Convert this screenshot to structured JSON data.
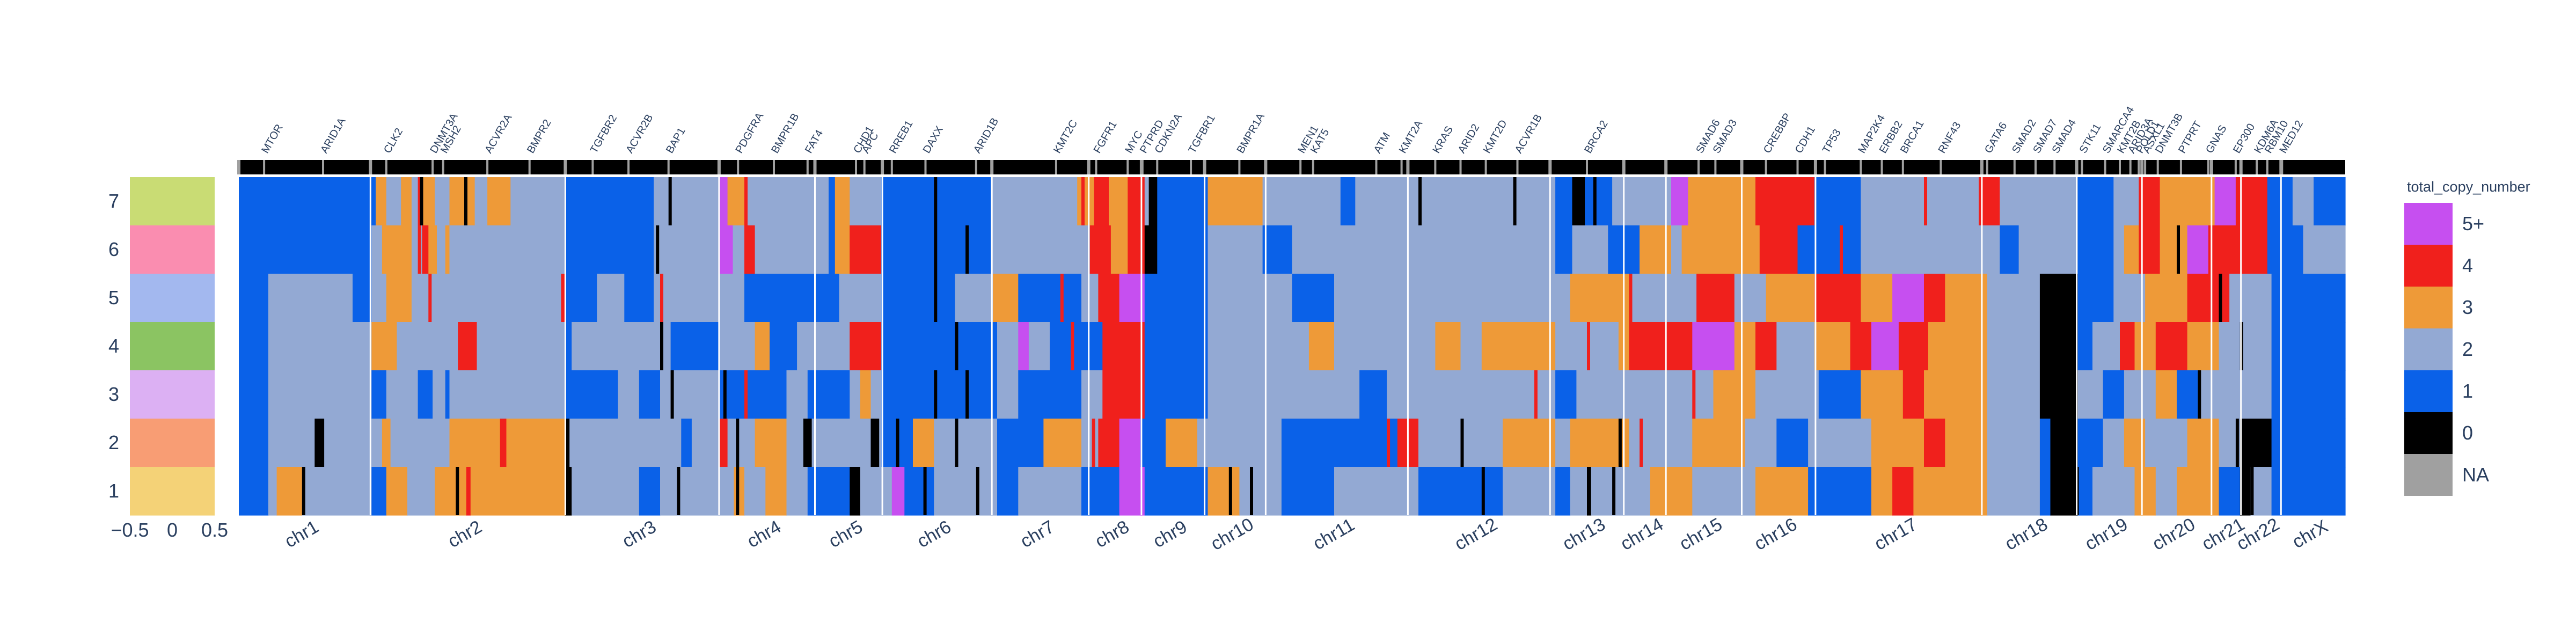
{
  "chart_data": {
    "type": "heatmap",
    "title": "",
    "legend": {
      "title": "total_copy_number",
      "placement": "right",
      "entries": [
        {
          "label": "5+",
          "color": "#c64ff0"
        },
        {
          "label": "4",
          "color": "#f0201c"
        },
        {
          "label": "3",
          "color": "#ee9a38"
        },
        {
          "label": "2",
          "color": "#93a9d3"
        },
        {
          "label": "1",
          "color": "#0a61e8"
        },
        {
          "label": "0",
          "color": "#000000"
        },
        {
          "label": "NA",
          "color": "#a0a0a0"
        }
      ]
    },
    "clusters": {
      "y_ticks": [
        "7",
        "6",
        "5",
        "4",
        "3",
        "2",
        "1"
      ],
      "x_ticks": [
        "−0.5",
        "0",
        "0.5"
      ],
      "colors": [
        "#c9dc74",
        "#fa8db0",
        "#a3b8ef",
        "#8bc462",
        "#dcb0f3",
        "#f89d74",
        "#f4d277"
      ]
    },
    "chromosomes": [
      {
        "name": "chr1",
        "start": 0.0,
        "end": 0.0625
      },
      {
        "name": "chr2",
        "start": 0.0625,
        "end": 0.155
      },
      {
        "name": "chr3",
        "start": 0.155,
        "end": 0.228
      },
      {
        "name": "chr4",
        "start": 0.228,
        "end": 0.2735
      },
      {
        "name": "chr5",
        "start": 0.2735,
        "end": 0.3055
      },
      {
        "name": "chr6",
        "start": 0.3055,
        "end": 0.3575
      },
      {
        "name": "chr7",
        "start": 0.3575,
        "end": 0.4035
      },
      {
        "name": "chr8",
        "start": 0.4035,
        "end": 0.4285
      },
      {
        "name": "chr9",
        "start": 0.4285,
        "end": 0.4585
      },
      {
        "name": "chr10",
        "start": 0.4585,
        "end": 0.4875
      },
      {
        "name": "chr11",
        "start": 0.4875,
        "end": 0.555
      },
      {
        "name": "chr12",
        "start": 0.555,
        "end": 0.6225
      },
      {
        "name": "chr13",
        "start": 0.6225,
        "end": 0.6575
      },
      {
        "name": "chr14",
        "start": 0.6575,
        "end": 0.6775
      },
      {
        "name": "chr15",
        "start": 0.6775,
        "end": 0.7135
      },
      {
        "name": "chr16",
        "start": 0.7135,
        "end": 0.7485
      },
      {
        "name": "chr17",
        "start": 0.7485,
        "end": 0.8275
      },
      {
        "name": "chr18",
        "start": 0.8275,
        "end": 0.8725
      },
      {
        "name": "chr19",
        "start": 0.8725,
        "end": 0.9035
      },
      {
        "name": "chr20",
        "start": 0.9035,
        "end": 0.9365
      },
      {
        "name": "chr21",
        "start": 0.9365,
        "end": 0.9505
      },
      {
        "name": "chr22",
        "start": 0.9505,
        "end": 0.9695
      },
      {
        "name": "chrX",
        "start": 0.9695,
        "end": 1.0
      }
    ],
    "genes": [
      {
        "name": "MTOR",
        "pos": 0.012
      },
      {
        "name": "ARID1A",
        "pos": 0.04
      },
      {
        "name": "CLK2",
        "pos": 0.07
      },
      {
        "name": "DNMT3A",
        "pos": 0.092
      },
      {
        "name": "MSH2",
        "pos": 0.097
      },
      {
        "name": "ACVR2A",
        "pos": 0.118
      },
      {
        "name": "BMPR2",
        "pos": 0.138
      },
      {
        "name": "TGFBR2",
        "pos": 0.168
      },
      {
        "name": "ACVR2B",
        "pos": 0.185
      },
      {
        "name": "BAP1",
        "pos": 0.204
      },
      {
        "name": "PDGFRA",
        "pos": 0.237
      },
      {
        "name": "BMPR1B",
        "pos": 0.254
      },
      {
        "name": "FAT4",
        "pos": 0.27
      },
      {
        "name": "CHD1",
        "pos": 0.293
      },
      {
        "name": "APC",
        "pos": 0.297
      },
      {
        "name": "RREB1",
        "pos": 0.31
      },
      {
        "name": "DAXX",
        "pos": 0.326
      },
      {
        "name": "ARID1B",
        "pos": 0.35
      },
      {
        "name": "KMT2C",
        "pos": 0.388
      },
      {
        "name": "FGFR1",
        "pos": 0.407
      },
      {
        "name": "MYC",
        "pos": 0.422
      },
      {
        "name": "PTPRD",
        "pos": 0.429
      },
      {
        "name": "CDKN2A",
        "pos": 0.436
      },
      {
        "name": "TGFBR1",
        "pos": 0.452
      },
      {
        "name": "BMPR1A",
        "pos": 0.475
      },
      {
        "name": "MEN1",
        "pos": 0.504
      },
      {
        "name": "KAT5",
        "pos": 0.51
      },
      {
        "name": "ATM",
        "pos": 0.54
      },
      {
        "name": "KMT2A",
        "pos": 0.552
      },
      {
        "name": "KRAS",
        "pos": 0.568
      },
      {
        "name": "ARID2",
        "pos": 0.58
      },
      {
        "name": "KMT2D",
        "pos": 0.592
      },
      {
        "name": "ACVR1B",
        "pos": 0.607
      },
      {
        "name": "BRCA2",
        "pos": 0.64
      },
      {
        "name": "SMAD6",
        "pos": 0.693
      },
      {
        "name": "SMAD3",
        "pos": 0.701
      },
      {
        "name": "CREBBP",
        "pos": 0.725
      },
      {
        "name": "CDH1",
        "pos": 0.74
      },
      {
        "name": "TP53",
        "pos": 0.753
      },
      {
        "name": "MAP2K4",
        "pos": 0.77
      },
      {
        "name": "ERBB2",
        "pos": 0.78
      },
      {
        "name": "BRCA1",
        "pos": 0.79
      },
      {
        "name": "RNF43",
        "pos": 0.808
      },
      {
        "name": "GATA6",
        "pos": 0.83
      },
      {
        "name": "SMAD2",
        "pos": 0.843
      },
      {
        "name": "SMAD7",
        "pos": 0.853
      },
      {
        "name": "SMAD4",
        "pos": 0.862
      },
      {
        "name": "STK11",
        "pos": 0.875
      },
      {
        "name": "SMARCA4",
        "pos": 0.886
      },
      {
        "name": "KMT2B",
        "pos": 0.893
      },
      {
        "name": "ARID3A",
        "pos": 0.898
      },
      {
        "name": "POLD1",
        "pos": 0.902
      },
      {
        "name": "ASXL1",
        "pos": 0.905
      },
      {
        "name": "DNMT3B",
        "pos": 0.911
      },
      {
        "name": "PTPRT",
        "pos": 0.922
      },
      {
        "name": "GNAS",
        "pos": 0.935
      },
      {
        "name": "EP300",
        "pos": 0.948
      },
      {
        "name": "KDM6A",
        "pos": 0.958
      },
      {
        "name": "RBM10",
        "pos": 0.963
      },
      {
        "name": "MED12",
        "pos": 0.97
      }
    ],
    "rows": [
      "7",
      "6",
      "5",
      "4",
      "3",
      "2",
      "1"
    ],
    "segments": [
      [
        "1:0.0,1:0.063,3:0.065,2:0.07,3:0.077,2:0.082,4:0.085,3:0.087,2:0.093,3:0.1,2:0.112,3:0.118,2:0.129,1:0.155,2:0.197,5:0.228,3:0.232,2:0.24,1:0.28,3:0.283,2:0.29,1:0.305,2:0.357,3:0.398,4:0.406,3:0.413,4:0.422,2:0.43,0:0.432,1:0.436,3:0.46,2:0.486,1:0.523,2:0.53,1:0.625,0:0.633,1:0.639,2:0.652,5:0.68,3:0.688,4:0.72,1:0.748,2:0.77,4:0.826,2:0.836,1:0.873,2:0.89,4:0.902,3:0.912,5:0.938,4:0.948,1:0.963,2:0.975,1:0.985"
      ],
      [
        "1:0.0,2:0.063,3:0.068,2:0.082,4:0.087,3:0.09,2:0.094,3:0.098,2:0.1,1:0.155,2:0.197,5:0.228,2:0.233,4:0.24,2:0.245,1:0.28,3:0.283,4:0.29,1:0.305,2:0.357,4:0.404,3:0.414,4:0.422,0:0.43,1:0.436,2:0.46,1:0.486,2:0.5,1:0.625,2:0.633,1:0.65,3:0.665,2:0.68,3:0.685,4:0.722,1:0.74,2:0.77,1:0.836,2:0.845,1:0.873,2:0.89,3:0.895,4:0.902,3:0.912,5:0.925,4:0.935,1:0.963,2:0.98"
      ],
      [
        "1:0.0,2:0.014,1:0.054,2:0.063,3:0.07,2:0.082,4:0.153,1:0.155,2:0.17,1:0.183,2:0.197,1:0.24,2:0.285,1:0.305,2:0.34,1:0.36,3:0.358,1:0.37,2:0.4,4:0.408,5:0.418,1:0.43,2:0.46,1:0.5,2:0.52,3:0.632,2:0.66,4:0.692,2:0.71,3:0.725,4:0.748,3:0.77,5:0.785,4:0.8,3:0.81,2:0.83,0:0.855,1:0.873,2:0.89,3:0.905,4:0.925,2:0.945,1:0.965"
      ],
      [
        "1:0.0,2:0.014,3:0.063,2:0.075,4:0.104,2:0.113,1:0.155,2:0.158,1:0.205,2:0.228,3:0.245,1:0.252,2:0.265,4:0.29,1:0.305,2:0.36,5:0.37,2:0.375,1:0.385,4:0.41,1:0.43,2:0.46,3:0.508,2:0.52,3:0.568,2:0.58,3:0.59,2:0.625,3:0.655,4:0.66,5:0.69,3:0.71,4:0.72,2:0.73,3:0.748,4:0.765,5:0.775,4:0.788,3:0.802,2:0.83,0:0.855,1:0.873,2:0.88,4:0.893,3:0.9,4:0.91,3:0.925,2:0.94,1:0.965"
      ],
      [
        "1:0.0,2:0.014,1:0.063,2:0.07,1:0.085,2:0.092,1:0.098,2:0.1,1:0.155,2:0.18,1:0.19,2:0.2,1:0.228,2:0.26,1:0.27,2:0.29,3:0.295,2:0.3,1:0.305,2:0.36,1:0.37,2:0.4,4:0.41,1:0.43,2:0.46,1:0.532,2:0.545,1:0.625,2:0.635,3:0.7,2:0.72,1:0.75,3:0.77,4:0.79,3:0.8,2:0.83,0:0.855,2:0.873,1:0.885,2:0.895,3:0.91,1:0.92,2:0.93,1:0.965"
      ],
      [
        "1:0.0,2:0.014,0:0.036,2:0.04,3:0.068,2:0.072,3:0.1,4:0.125,3:0.127,0:0.155,2:0.157,1:0.21,2:0.215,4:0.228,2:0.232,3:0.245,2:0.26,0:0.268,2:0.272,0:0.3,2:0.304,1:0.305,3:0.32,2:0.33,1:0.36,3:0.382,2:0.4,4:0.408,5:0.418,1:0.428,3:0.44,2:0.455,1:0.495,4:0.55,2:0.56,3:0.6,2:0.625,3:0.632,2:0.66,3:0.69,2:0.715,1:0.73,2:0.745,3:0.775,4:0.8,3:0.81,2:0.83,1:0.855,0:0.86,1:0.873,2:0.885,3:0.895,2:0.905,3:0.925,2:0.94,0:0.95,1:0.965"
      ],
      [
        "1:0.0,2:0.014,3:0.018,2:0.03,1:0.063,3:0.07,2:0.08,3:0.093,4:0.108,3:0.11,0:0.155,2:0.158,1:0.19,2:0.2,3:0.235,2:0.24,3:0.25,2:0.26,1:0.27,0:0.29,2:0.295,5:0.31,1:0.316,2:0.33,1:0.36,2:0.37,1:0.4,5:0.418,1:0.43,3:0.46,2:0.475,1:0.495,2:0.52,1:0.56,2:0.6,1:0.625,2:0.632,0:0.64,2:0.642,3:0.67,2:0.69,3:0.72,1:0.745,3:0.775,4:0.785,3:0.795,2:0.83,1:0.855,0:0.86,1:0.873,2:0.88,3:0.9,2:0.91,3:0.92,1:0.94,0:0.95,2:0.955,1:0.965"
      ]
    ],
    "accents": [
      [
        "0:0.086",
        "0:0.107",
        "0:0.204",
        "4:0.24",
        "0:0.33",
        "4:0.4",
        "0:0.56",
        "0:0.605",
        "0:0.643",
        "4:0.735",
        "4:0.8"
      ],
      [
        "4:0.085",
        "0:0.198",
        "5:0.233",
        "4:0.29",
        "0:0.33",
        "0:0.345",
        "4:0.76",
        "0:0.92"
      ],
      [
        "4:0.09",
        "4:0.2",
        "0:0.33",
        "4:0.39",
        "4:0.66",
        "0:0.94"
      ],
      [
        "4:0.105",
        "0:0.2",
        "4:0.29",
        "0:0.34",
        "4:0.395",
        "4:0.64",
        "4:0.685",
        "0:0.95"
      ],
      [
        "0:0.205",
        "0:0.23",
        "4:0.24",
        "0:0.33",
        "0:0.345",
        "4:0.615",
        "4:0.69",
        "0:0.93"
      ],
      [
        "0:0.037",
        "0:0.039",
        "4:0.124",
        "0:0.236",
        "0:0.312",
        "0:0.34",
        "4:0.405",
        "4:0.545",
        "0:0.58",
        "0:0.655",
        "4:0.665",
        "0:0.948"
      ],
      [
        "0:0.03",
        "0:0.103",
        "4:0.108",
        "0:0.208",
        "0:0.236",
        "0:0.325",
        "0:0.35",
        "0:0.47",
        "0:0.48",
        "0:0.59",
        "0:0.652",
        "0:0.872",
        "0:0.955"
      ]
    ]
  }
}
